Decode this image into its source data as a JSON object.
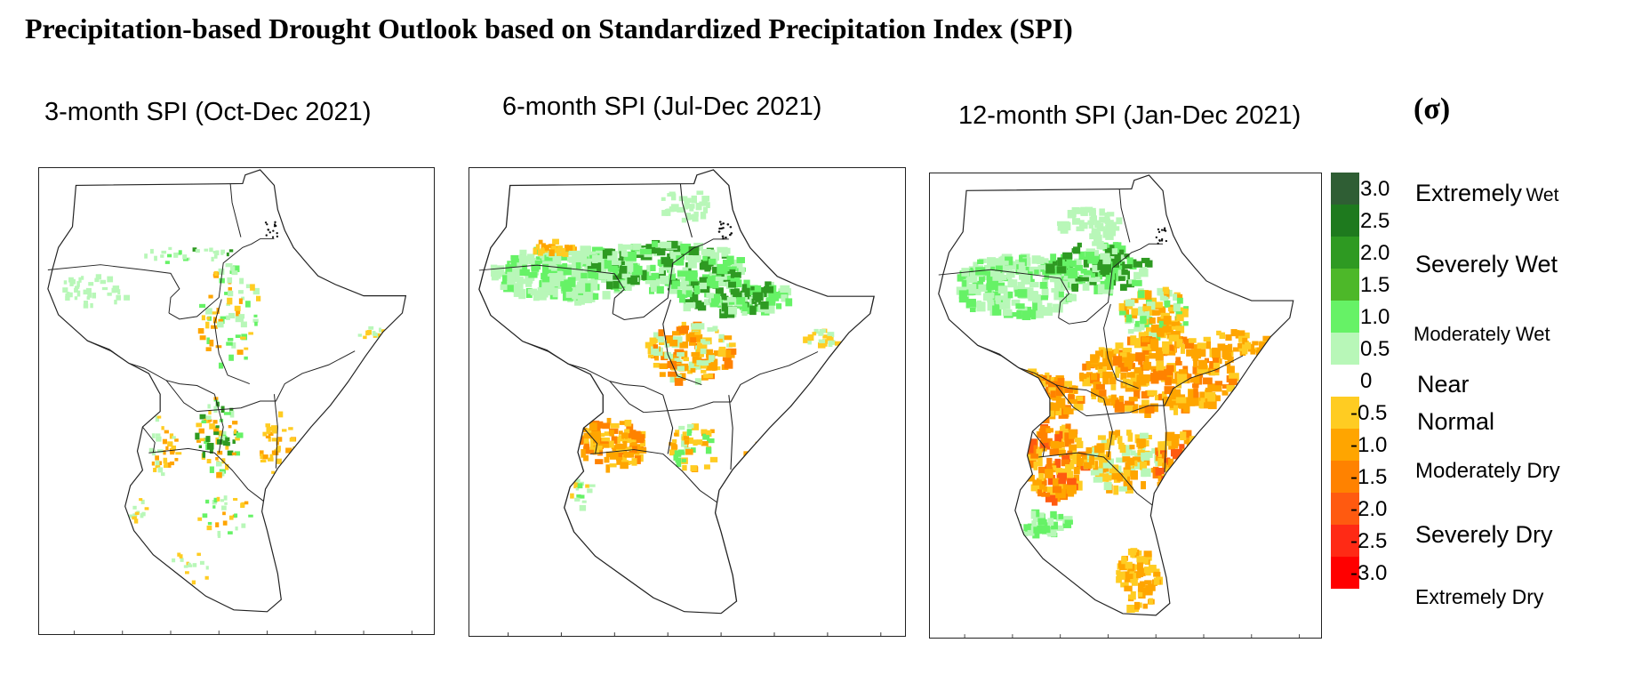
{
  "title": "Precipitation-based Drought Outlook based on Standardized Precipitation Index (SPI)",
  "unit_label": "(σ)",
  "panels": [
    {
      "title": "3-month SPI (Oct-Dec 2021)",
      "variant": "3-month"
    },
    {
      "title": "6-month SPI (Jul-Dec 2021)",
      "variant": "6-month"
    },
    {
      "title": "12-month SPI (Jan-Dec 2021)",
      "variant": "12-month"
    }
  ],
  "colorbar": {
    "bins": [
      {
        "from": 3.0,
        "to": 3.5,
        "color": "#2f5e34"
      },
      {
        "from": 2.5,
        "to": 3.0,
        "color": "#1e7a1e"
      },
      {
        "from": 2.0,
        "to": 2.5,
        "color": "#2e9a22"
      },
      {
        "from": 1.5,
        "to": 2.0,
        "color": "#4db829"
      },
      {
        "from": 1.0,
        "to": 1.5,
        "color": "#66f266"
      },
      {
        "from": 0.5,
        "to": 1.0,
        "color": "#b8f7b8"
      },
      {
        "from": -0.5,
        "to": 0.5,
        "color": "#ffffff"
      },
      {
        "from": -1.0,
        "to": -0.5,
        "color": "#ffcc22"
      },
      {
        "from": -1.5,
        "to": -1.0,
        "color": "#ffa500"
      },
      {
        "from": -2.0,
        "to": -1.5,
        "color": "#ff8200"
      },
      {
        "from": -2.5,
        "to": -2.0,
        "color": "#ff5a10"
      },
      {
        "from": -3.0,
        "to": -2.5,
        "color": "#ff2a15"
      },
      {
        "from": -3.5,
        "to": -3.0,
        "color": "#ff0000"
      }
    ],
    "tick_labels": [
      "3.0",
      "2.5",
      "2.0",
      "1.5",
      "1.0",
      "0.5",
      "0",
      "-0.5",
      "-1.0",
      "-1.5",
      "-2.0",
      "-2.5",
      "-3.0"
    ],
    "classes": [
      {
        "main": "Extremely",
        "small": "Wet"
      },
      {
        "main": "Severely Wet",
        "small": ""
      },
      {
        "main": "Moderately Wet",
        "small": ""
      },
      {
        "main": "Near",
        "small": ""
      },
      {
        "main": "Normal",
        "small": ""
      },
      {
        "main": "Moderately Dry",
        "small": ""
      },
      {
        "main": "Severely Dry",
        "small": ""
      },
      {
        "main": "Extremely Dry",
        "small": ""
      }
    ]
  },
  "colors": {
    "light_green": "#b8f7b8",
    "green": "#66f266",
    "dark_green": "#2e9a22",
    "yellow": "#ffcc22",
    "orange": "#ffa500",
    "dark_orange": "#ff8200",
    "red_orange": "#ff5a10",
    "boundary": "#222222"
  }
}
